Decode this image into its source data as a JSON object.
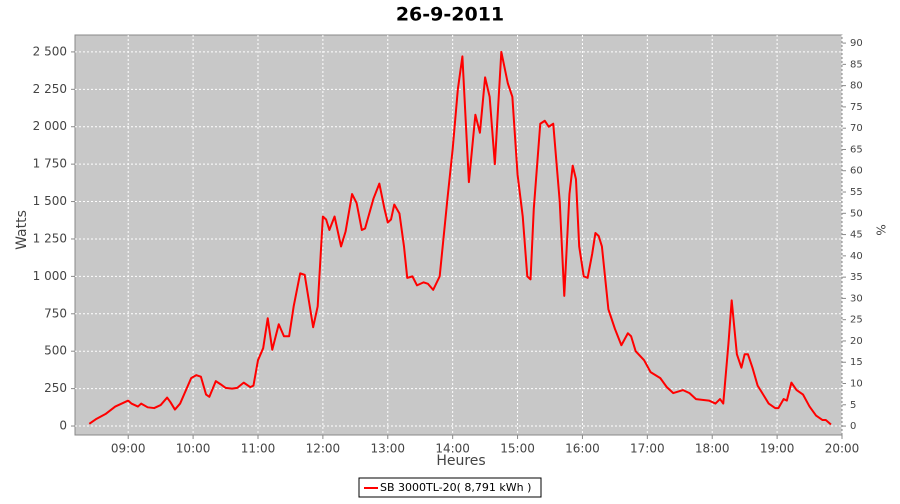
{
  "chart_data": {
    "type": "line",
    "title": "26-9-2011",
    "x_label": "Heures",
    "y_label": "Watts",
    "y2_label": "%",
    "x": [
      8.4,
      8.5,
      8.65,
      8.8,
      8.95,
      9.0,
      9.05,
      9.15,
      9.2,
      9.3,
      9.4,
      9.5,
      9.6,
      9.65,
      9.72,
      9.8,
      9.9,
      9.97,
      10.05,
      10.12,
      10.2,
      10.25,
      10.35,
      10.42,
      10.5,
      10.6,
      10.68,
      10.78,
      10.88,
      10.93,
      11.0,
      11.08,
      11.15,
      11.22,
      11.32,
      11.4,
      11.48,
      11.55,
      11.65,
      11.72,
      11.85,
      11.92,
      12.0,
      12.05,
      12.1,
      12.18,
      12.28,
      12.35,
      12.45,
      12.52,
      12.6,
      12.65,
      12.78,
      12.87,
      12.95,
      13.0,
      13.05,
      13.1,
      13.18,
      13.25,
      13.3,
      13.38,
      13.45,
      13.55,
      13.62,
      13.7,
      13.8,
      13.92,
      14.0,
      14.08,
      14.15,
      14.25,
      14.35,
      14.42,
      14.5,
      14.57,
      14.65,
      14.75,
      14.85,
      14.92,
      15.0,
      15.08,
      15.15,
      15.2,
      15.25,
      15.35,
      15.42,
      15.48,
      15.55,
      15.65,
      15.72,
      15.8,
      15.85,
      15.9,
      15.95,
      16.02,
      16.08,
      16.15,
      16.2,
      16.25,
      16.3,
      16.4,
      16.5,
      16.6,
      16.7,
      16.75,
      16.82,
      16.95,
      17.05,
      17.2,
      17.3,
      17.4,
      17.55,
      17.65,
      17.75,
      17.95,
      18.05,
      18.12,
      18.17,
      18.25,
      18.3,
      18.38,
      18.45,
      18.5,
      18.55,
      18.62,
      18.7,
      18.8,
      18.87,
      18.97,
      19.02,
      19.1,
      19.15,
      19.22,
      19.3,
      19.4,
      19.5,
      19.6,
      19.7,
      19.75,
      19.83
    ],
    "series": [
      {
        "name": "SB 3000TL-20( 8,791 kWh )",
        "color": "#ff0000",
        "values": [
          15,
          45,
          80,
          130,
          160,
          170,
          150,
          130,
          150,
          125,
          120,
          140,
          190,
          160,
          110,
          150,
          250,
          320,
          340,
          330,
          210,
          195,
          300,
          280,
          255,
          250,
          255,
          290,
          260,
          270,
          440,
          520,
          720,
          510,
          680,
          600,
          600,
          800,
          1020,
          1010,
          660,
          800,
          1400,
          1380,
          1310,
          1400,
          1200,
          1300,
          1550,
          1490,
          1310,
          1320,
          1520,
          1620,
          1450,
          1360,
          1380,
          1480,
          1420,
          1200,
          990,
          1000,
          940,
          960,
          950,
          910,
          1000,
          1520,
          1850,
          2250,
          2470,
          1630,
          2080,
          1960,
          2330,
          2200,
          1750,
          2500,
          2290,
          2200,
          1680,
          1400,
          1000,
          980,
          1450,
          2020,
          2040,
          2000,
          2020,
          1500,
          870,
          1550,
          1740,
          1650,
          1200,
          1000,
          990,
          1150,
          1290,
          1270,
          1200,
          780,
          650,
          540,
          620,
          600,
          500,
          440,
          360,
          320,
          260,
          220,
          240,
          220,
          180,
          170,
          150,
          180,
          150,
          550,
          840,
          480,
          390,
          480,
          480,
          390,
          270,
          200,
          150,
          120,
          120,
          180,
          170,
          290,
          240,
          210,
          130,
          70,
          40,
          40,
          10
        ]
      }
    ],
    "xlim": [
      8.18,
      20
    ],
    "xticks": [
      {
        "value": 9,
        "label": "09:00"
      },
      {
        "value": 10,
        "label": "10:00"
      },
      {
        "value": 11,
        "label": "11:00"
      },
      {
        "value": 12,
        "label": "12:00"
      },
      {
        "value": 13,
        "label": "13:00"
      },
      {
        "value": 14,
        "label": "14:00"
      },
      {
        "value": 15,
        "label": "15:00"
      },
      {
        "value": 16,
        "label": "16:00"
      },
      {
        "value": 17,
        "label": "17:00"
      },
      {
        "value": 18,
        "label": "18:00"
      },
      {
        "value": 19,
        "label": "19:00"
      },
      {
        "value": 20,
        "label": "20:00"
      }
    ],
    "ylim": [
      -60,
      2613
    ],
    "yticks": [
      0,
      250,
      500,
      750,
      {
        "value": 1000,
        "label": "1 000"
      },
      {
        "value": 1250,
        "label": "1 250"
      },
      {
        "value": 1500,
        "label": "1 500"
      },
      {
        "value": 1750,
        "label": "1 750"
      },
      {
        "value": 2000,
        "label": "2 000"
      },
      {
        "value": 2250,
        "label": "2 250"
      },
      {
        "value": 2500,
        "label": "2 500"
      }
    ],
    "y2lim": [
      -2.1,
      91.9
    ],
    "y2ticks": [
      0,
      5,
      10,
      15,
      20,
      25,
      30,
      35,
      40,
      45,
      50,
      55,
      60,
      65,
      70,
      75,
      80,
      85,
      90
    ],
    "grid": true
  }
}
